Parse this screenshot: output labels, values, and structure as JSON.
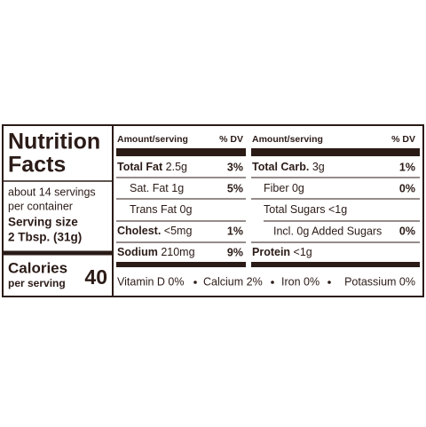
{
  "label": {
    "title_lines": [
      "Nutrition",
      "Facts"
    ],
    "servings_lines": [
      "about 14 servings",
      "per container"
    ],
    "serving_size_lines": [
      "Serving size",
      "2 Tbsp. (31g)"
    ],
    "calories_label": "Calories",
    "calories_sub": "per serving",
    "calories_value": "40",
    "headers": [
      {
        "amount": "Amount/serving",
        "dv": "% DV"
      },
      {
        "amount": "Amount/serving",
        "dv": "% DV"
      }
    ],
    "left_rows": [
      {
        "name": "Total Fat",
        "amount": "2.5g",
        "dv": "3%"
      },
      {
        "name": "Sat. Fat",
        "amount": "1g",
        "dv": "5%"
      },
      {
        "name": "Trans Fat",
        "amount": "0g"
      },
      {
        "name": "Cholest.",
        "amount": "<5mg",
        "dv": "1%"
      },
      {
        "name": "Sodium",
        "amount": "210mg",
        "dv": "9%"
      }
    ],
    "right_rows": [
      {
        "name": "Total Carb.",
        "amount": "3g",
        "dv": "1%"
      },
      {
        "name": "Fiber",
        "amount": "0g",
        "dv": "0%"
      },
      {
        "name": "Total Sugars",
        "amount": "<1g"
      },
      {
        "name": "Incl. 0g Added Sugars",
        "dv": "0%"
      },
      {
        "name": "Protein",
        "amount": "<1g"
      }
    ],
    "footer": [
      "Vitamin D 0%",
      "Calcium 2%",
      "Iron 0%",
      "Potassium 0%"
    ]
  }
}
